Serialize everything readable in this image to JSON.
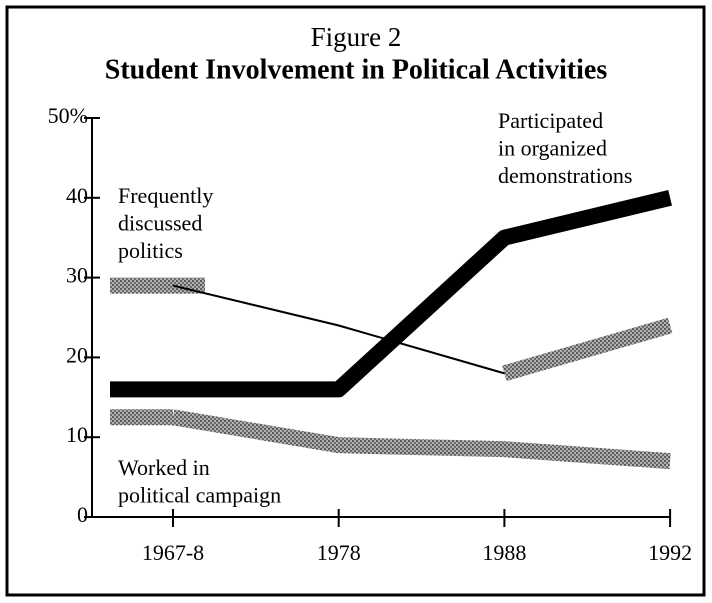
{
  "chart_data": {
    "type": "line",
    "title": "Figure 2",
    "subtitle": "Student Involvement in Political Activities",
    "categories": [
      "1967-8",
      "1978",
      "1988",
      "1992"
    ],
    "series": [
      {
        "name": [
          "Participated",
          "in organized",
          "demonstrations"
        ],
        "color": "#000000",
        "values": [
          16,
          16,
          35,
          40
        ]
      },
      {
        "name": [
          "Frequently",
          "discussed",
          "politics"
        ],
        "color": "#8a8a8a",
        "values": [
          29,
          24,
          18,
          24
        ]
      },
      {
        "name": [
          "Worked in",
          "political campaign"
        ],
        "color": "#8a8a8a",
        "values": [
          12.5,
          9,
          8.5,
          7
        ]
      }
    ],
    "ylim": [
      0,
      50
    ],
    "yticks": [
      0,
      10,
      20,
      30,
      40,
      {
        "value": 50,
        "label": "50%"
      }
    ]
  }
}
